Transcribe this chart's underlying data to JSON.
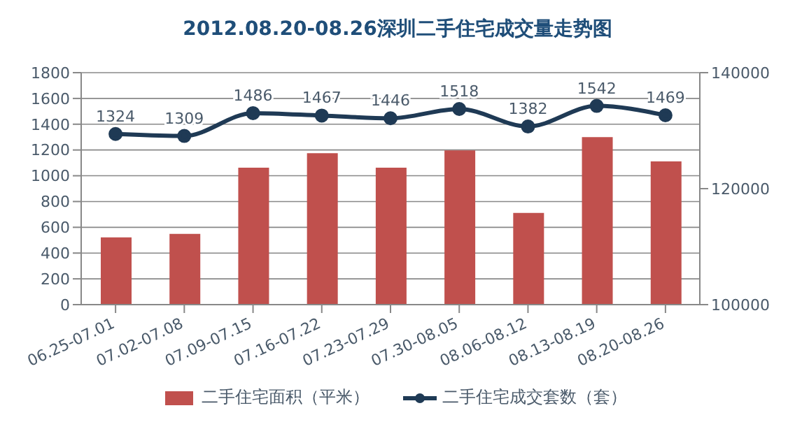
{
  "chart_data": {
    "type": "bar",
    "title": "2012.08.20-08.26深圳二手住宅成交量走势图",
    "categories": [
      "06.25-07.01",
      "07.02-07.08",
      "07.09-07.15",
      "07.16-07.22",
      "07.23-07.29",
      "07.30-08.05",
      "08.06-08.12",
      "08.13-08.19",
      "08.20-08.26"
    ],
    "series": [
      {
        "name": "二手住宅面积（平米）",
        "axis": "y2",
        "color": "#c0504d",
        "values": [
          111600,
          112200,
          123600,
          126100,
          123600,
          126600,
          115800,
          128900,
          124700
        ]
      },
      {
        "name": "二手住宅成交套数（套）",
        "type": "line",
        "color": "#1f3a55",
        "values": [
          1324,
          1309,
          1486,
          1467,
          1446,
          1518,
          1382,
          1542,
          1469
        ],
        "value_labels": [
          "1324",
          "1309",
          "1486",
          "1467",
          "1446",
          "1518",
          "1382",
          "1542",
          "1469"
        ]
      }
    ],
    "ylim": [
      0,
      1800
    ],
    "yticks": [
      0,
      200,
      400,
      600,
      800,
      1000,
      1200,
      1400,
      1600,
      1800
    ],
    "y2lim": [
      100000,
      140000
    ],
    "y2ticks": [
      100000,
      120000,
      140000
    ],
    "grid": "y",
    "legend": "bottom",
    "marker": "circle"
  }
}
